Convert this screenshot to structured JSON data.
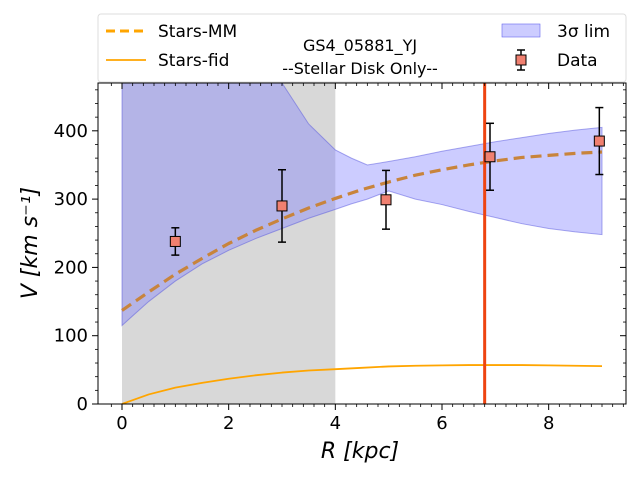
{
  "chart_data": {
    "type": "line",
    "title": "GS4_05881_YJ",
    "subtitle": "--Stellar Disk Only--",
    "xlabel": "R [kpc]",
    "ylabel": "V [km s⁻¹]",
    "xlim": [
      -0.45,
      9.45
    ],
    "ylim": [
      0,
      470
    ],
    "xticks": [
      0,
      2,
      4,
      6,
      8
    ],
    "yticks": [
      0,
      100,
      200,
      300,
      400
    ],
    "grid": false,
    "legend_position": "top",
    "shaded_region": {
      "x_start": 0,
      "x_end": 4,
      "color": "#d8d8d8"
    },
    "vertical_line": {
      "x": 6.8,
      "color": "#ee4411"
    },
    "series": [
      {
        "name": "Stars-MM",
        "style": "dashed",
        "color": "#ffa500",
        "x": [
          0,
          0.5,
          1,
          1.5,
          2,
          2.5,
          3,
          3.5,
          4,
          4.5,
          5,
          5.5,
          6,
          6.5,
          7,
          7.5,
          8,
          8.5,
          9
        ],
        "y": [
          137,
          164,
          190,
          213,
          235,
          254,
          271,
          287,
          301,
          314,
          325,
          335,
          343,
          350,
          356,
          361,
          364,
          367,
          369
        ]
      },
      {
        "name": "Stars-fid",
        "style": "solid",
        "color": "#ffa500",
        "x": [
          0,
          0.5,
          1,
          1.5,
          2,
          2.5,
          3,
          3.5,
          4,
          4.5,
          5,
          5.5,
          6,
          6.5,
          7,
          7.5,
          8,
          8.5,
          9
        ],
        "y": [
          0,
          14,
          24,
          31,
          37,
          42,
          46,
          49,
          51,
          53,
          55,
          56,
          56.5,
          57,
          57,
          57,
          56.5,
          56,
          55.5
        ]
      }
    ],
    "band": {
      "name": "3σ lim",
      "color": "#8080ff",
      "x": [
        0,
        0.5,
        1,
        1.5,
        2,
        2.5,
        3,
        3.5,
        4,
        4.3,
        4.6,
        5,
        5.5,
        6,
        6.5,
        7,
        7.5,
        8,
        8.5,
        9
      ],
      "upper": [
        490,
        490,
        490,
        490,
        490,
        490,
        470,
        410,
        372,
        360,
        350,
        355,
        362,
        370,
        377,
        384,
        390,
        396,
        401,
        405
      ],
      "lower": [
        115,
        150,
        180,
        205,
        225,
        242,
        257,
        272,
        285,
        293,
        300,
        312,
        300,
        292,
        282,
        273,
        264,
        257,
        252,
        248
      ]
    },
    "data_points": {
      "name": "Data",
      "color": "#f08070",
      "x": [
        1.0,
        3.0,
        4.95,
        6.9,
        8.95
      ],
      "y": [
        238,
        290,
        299,
        362,
        385
      ],
      "yerr": [
        20,
        53,
        43,
        49,
        49
      ]
    }
  }
}
